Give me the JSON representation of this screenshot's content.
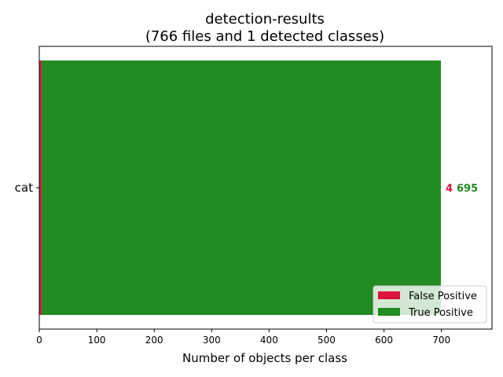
{
  "chart_data": {
    "type": "bar",
    "orientation": "horizontal",
    "stacked": true,
    "title": "detection-results",
    "subtitle": "(766 files and 1 detected classes)",
    "xlabel": "Number of objects per class",
    "ylabel": "",
    "categories": [
      "cat"
    ],
    "series": [
      {
        "name": "False Positive",
        "values": [
          4
        ],
        "color": "#dc143c"
      },
      {
        "name": "True Positive",
        "values": [
          695
        ],
        "color": "#228b22"
      }
    ],
    "value_labels": [
      {
        "text": "4",
        "color": "#dc143c"
      },
      {
        "text": "695",
        "color": "#228b22"
      }
    ],
    "xlim": [
      0,
      788
    ],
    "xticks": [
      "0",
      "100",
      "200",
      "300",
      "400",
      "500",
      "600",
      "700"
    ],
    "grid": false,
    "legend_position": "lower-right"
  }
}
